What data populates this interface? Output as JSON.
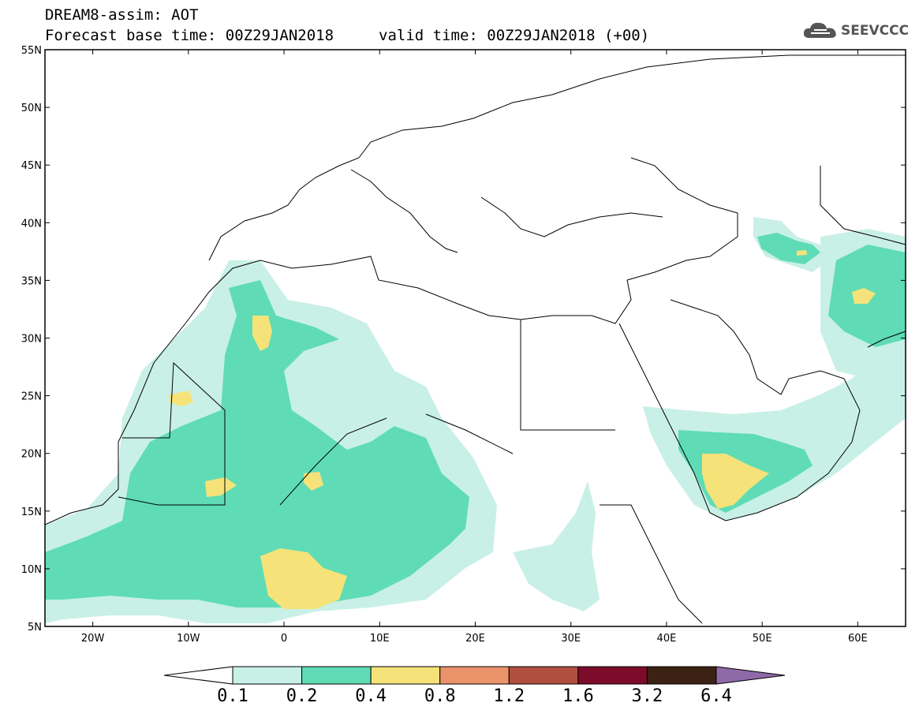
{
  "header": {
    "title": "DREAM8-assim: AOT",
    "forecast_base": "Forecast base time: 00Z29JAN2018",
    "valid_time": "valid time: 00Z29JAN2018 (+00)"
  },
  "logo": {
    "text": "SEEVCCC",
    "icon": "cloud-icon"
  },
  "map": {
    "lon_range": [
      -25,
      65
    ],
    "lat_range": [
      5,
      55
    ],
    "lat_ticks": [
      "55N",
      "50N",
      "45N",
      "40N",
      "35N",
      "30N",
      "25N",
      "20N",
      "15N",
      "10N",
      "5N"
    ],
    "lon_ticks": [
      "20W",
      "10W",
      "0",
      "10E",
      "20E",
      "30E",
      "40E",
      "50E",
      "60E"
    ]
  },
  "colorbar": {
    "levels": [
      "0.1",
      "0.2",
      "0.4",
      "0.8",
      "1.2",
      "1.6",
      "3.2",
      "6.4"
    ],
    "colors": [
      "#c9f0e6",
      "#5fdcb5",
      "#f5e37a",
      "#eb946b",
      "#b04f40",
      "#7d0c2b",
      "#3b2213",
      "#8f6aa8"
    ],
    "under_color": "#ffffff"
  }
}
